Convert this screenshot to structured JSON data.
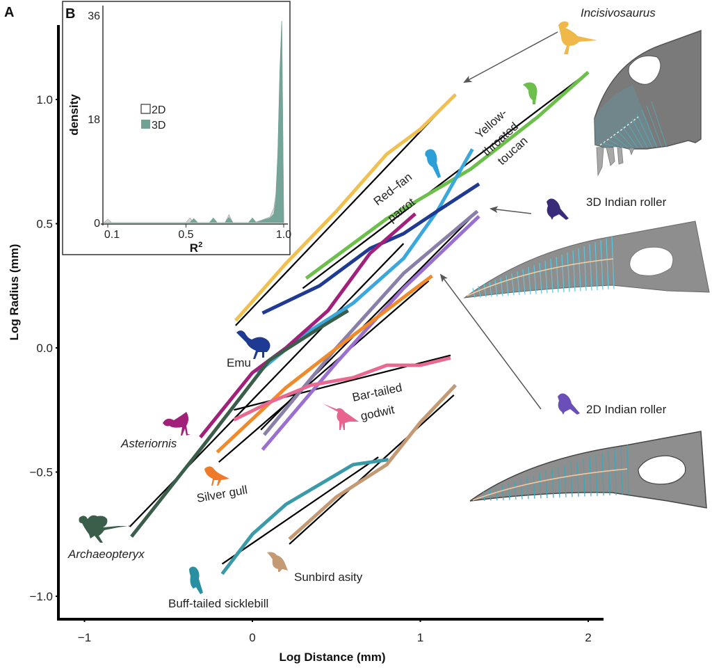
{
  "chart_data": [
    {
      "panel": "A",
      "type": "line",
      "title": "",
      "xlabel": "Log Distance (mm)",
      "ylabel": "Log Radius (mm)",
      "xlim": [
        -1.2,
        2.1
      ],
      "ylim": [
        -1.1,
        1.3
      ],
      "xticks": [
        -1,
        0,
        1,
        2
      ],
      "xtick_labels": [
        "−1",
        "0",
        "1",
        "2"
      ],
      "yticks": [
        -1.0,
        -0.5,
        0.0,
        0.5,
        1.0
      ],
      "ytick_labels": [
        "−1.0",
        "−0.5",
        "0.0",
        "0.5",
        "1.0"
      ],
      "grid": false,
      "series": [
        {
          "name": "Incisivosaurus",
          "color": "#f0c050",
          "italic": true,
          "x": [
            -0.1,
            0.2,
            0.5,
            0.8,
            1.0,
            1.21
          ],
          "y": [
            0.11,
            0.34,
            0.55,
            0.78,
            0.88,
            1.02
          ],
          "fit": {
            "x": [
              -0.1,
              1.21
            ],
            "y": [
              0.09,
              1.02
            ]
          }
        },
        {
          "name": "Yellow-throated toucan",
          "color": "#6cbf4a",
          "italic": false,
          "x": [
            0.32,
            0.8,
            1.3,
            1.7,
            2.0
          ],
          "y": [
            0.28,
            0.52,
            0.72,
            0.93,
            1.11
          ],
          "fit": {
            "x": [
              0.3,
              2.0
            ],
            "y": [
              0.24,
              1.11
            ]
          }
        },
        {
          "name": "Red–fan parrot",
          "color": "#3aa8dc",
          "italic": false,
          "x": [
            0.03,
            0.3,
            0.6,
            0.9,
            1.1,
            1.31
          ],
          "y": [
            -0.1,
            0.05,
            0.18,
            0.36,
            0.55,
            0.8
          ]
        },
        {
          "name": "Emu",
          "color": "#1f3a93",
          "italic": false,
          "x": [
            0.06,
            0.4,
            0.7,
            0.9,
            1.1,
            1.35
          ],
          "y": [
            0.14,
            0.25,
            0.4,
            0.46,
            0.55,
            0.66
          ]
        },
        {
          "name": "Asteriornis",
          "color": "#a0207a",
          "italic": true,
          "x": [
            -0.31,
            0.0,
            0.2,
            0.45,
            0.7,
            0.97
          ],
          "y": [
            -0.36,
            -0.1,
            0.0,
            0.15,
            0.38,
            0.54
          ]
        },
        {
          "name": "Archaeopteryx",
          "color": "#3b5e4a",
          "italic": true,
          "x": [
            -0.72,
            -0.3,
            0.1,
            0.4,
            0.57
          ],
          "y": [
            -0.76,
            -0.4,
            -0.05,
            0.08,
            0.15
          ],
          "fit": {
            "x": [
              -0.73,
              0.9
            ],
            "y": [
              -0.72,
              0.42
            ]
          }
        },
        {
          "name": "3D Indian roller",
          "color": "#8a7fa8",
          "italic": false,
          "x": [
            0.07,
            0.5,
            0.9,
            1.34
          ],
          "y": [
            -0.35,
            0.0,
            0.3,
            0.55
          ],
          "fit": {
            "x": [
              0.05,
              1.34
            ],
            "y": [
              -0.33,
              0.55
            ]
          }
        },
        {
          "name": "2D Indian roller",
          "color": "#9b6fd0",
          "italic": false,
          "x": [
            0.06,
            0.5,
            0.9,
            1.35
          ],
          "y": [
            -0.41,
            -0.06,
            0.24,
            0.53
          ]
        },
        {
          "name": "Silver gull",
          "color": "#f08a2a",
          "italic": false,
          "x": [
            -0.21,
            0.2,
            0.6,
            1.07
          ],
          "y": [
            -0.42,
            -0.16,
            0.05,
            0.29
          ],
          "fit": {
            "x": [
              -0.2,
              1.05
            ],
            "y": [
              -0.46,
              0.27
            ]
          }
        },
        {
          "name": "Bar-tailed godwit",
          "color": "#e86a90",
          "italic": false,
          "x": [
            -0.11,
            0.1,
            0.35,
            0.6,
            0.8,
            1.0,
            1.18
          ],
          "y": [
            -0.29,
            -0.22,
            -0.15,
            -0.12,
            -0.07,
            -0.07,
            -0.04
          ],
          "fit": {
            "x": [
              -0.11,
              1.18
            ],
            "y": [
              -0.25,
              -0.03
            ]
          }
        },
        {
          "name": "Buff-tailed sicklebill",
          "color": "#3a9aa8",
          "italic": false,
          "x": [
            -0.18,
            0.0,
            0.2,
            0.4,
            0.6,
            0.81
          ],
          "y": [
            -0.91,
            -0.75,
            -0.63,
            -0.55,
            -0.47,
            -0.45
          ],
          "fit": {
            "x": [
              -0.18,
              0.75
            ],
            "y": [
              -0.87,
              -0.44
            ]
          }
        },
        {
          "name": "Sunbird asity",
          "color": "#c49a74",
          "italic": false,
          "x": [
            0.22,
            0.5,
            0.8,
            1.0,
            1.21
          ],
          "y": [
            -0.77,
            -0.6,
            -0.47,
            -0.3,
            -0.15
          ],
          "fit": {
            "x": [
              0.22,
              1.2
            ],
            "y": [
              -0.79,
              -0.19
            ]
          }
        }
      ]
    },
    {
      "panel": "B",
      "type": "area",
      "title": "",
      "xlabel": "R²",
      "ylabel": "density",
      "xlim": [
        0.08,
        1.0
      ],
      "ylim": [
        0,
        36
      ],
      "xticks": [
        0.1,
        0.5,
        1.0
      ],
      "xtick_labels": [
        "0.1",
        "0.5",
        "1.0"
      ],
      "yticks": [
        0,
        18,
        36
      ],
      "ytick_labels": [
        "0",
        "18",
        "36"
      ],
      "legend": {
        "position": "upper-left",
        "entries": [
          {
            "label": "2D",
            "fill": "#ffffff",
            "stroke": "#333333"
          },
          {
            "label": "3D",
            "fill": "#6fa295",
            "stroke": "#6fa295"
          }
        ]
      },
      "series": [
        {
          "name": "2D",
          "color": "#cfcfcf",
          "x": [
            0.08,
            0.1,
            0.12,
            0.5,
            0.52,
            0.54,
            0.7,
            0.72,
            0.74,
            0.85,
            0.9,
            0.93,
            0.95,
            0.96,
            0.97,
            0.98,
            0.99,
            1.0
          ],
          "y": [
            0,
            0.6,
            0,
            0,
            0.8,
            0,
            0,
            1.4,
            0,
            0,
            0.6,
            1.0,
            2.5,
            5.0,
            12.0,
            25.0,
            34.0,
            0
          ]
        },
        {
          "name": "3D",
          "color": "#6fa295",
          "x": [
            0.08,
            0.52,
            0.54,
            0.56,
            0.62,
            0.64,
            0.66,
            0.7,
            0.72,
            0.74,
            0.82,
            0.84,
            0.86,
            0.9,
            0.93,
            0.95,
            0.96,
            0.97,
            0.98,
            0.99,
            1.0
          ],
          "y": [
            0,
            0,
            0.7,
            0,
            0,
            0.8,
            0,
            0,
            0.9,
            0,
            0,
            0.8,
            0,
            0.5,
            0.8,
            1.5,
            4.0,
            12.0,
            26.0,
            35.0,
            0
          ]
        }
      ]
    }
  ],
  "labels": {
    "panel_a": "A",
    "panel_b": "B",
    "incisivosaurus": "Incisivosaurus",
    "toucan_1": "Yellow-",
    "toucan_2": "throated",
    "toucan_3": "toucan",
    "parrot_1": "Red–fan",
    "parrot_2": "parrot",
    "roller_3d": "3D Indian roller",
    "roller_2d": "2D Indian roller",
    "emu": "Emu",
    "godwit_1": "Bar-tailed",
    "godwit_2": "godwit",
    "asteriornis": "Asteriornis",
    "silver_gull": "Silver gull",
    "archaeopteryx": "Archaeopteryx",
    "sunbird": "Sunbird asity",
    "sicklebill": "Buff-tailed sicklebill"
  },
  "colors": {
    "skull_grey": "#7a7a7a",
    "beak_grey": "#8e8e8e",
    "rib_teal": "#4fb3c8",
    "midline": "#f4c9a0",
    "arrow": "#555555"
  }
}
